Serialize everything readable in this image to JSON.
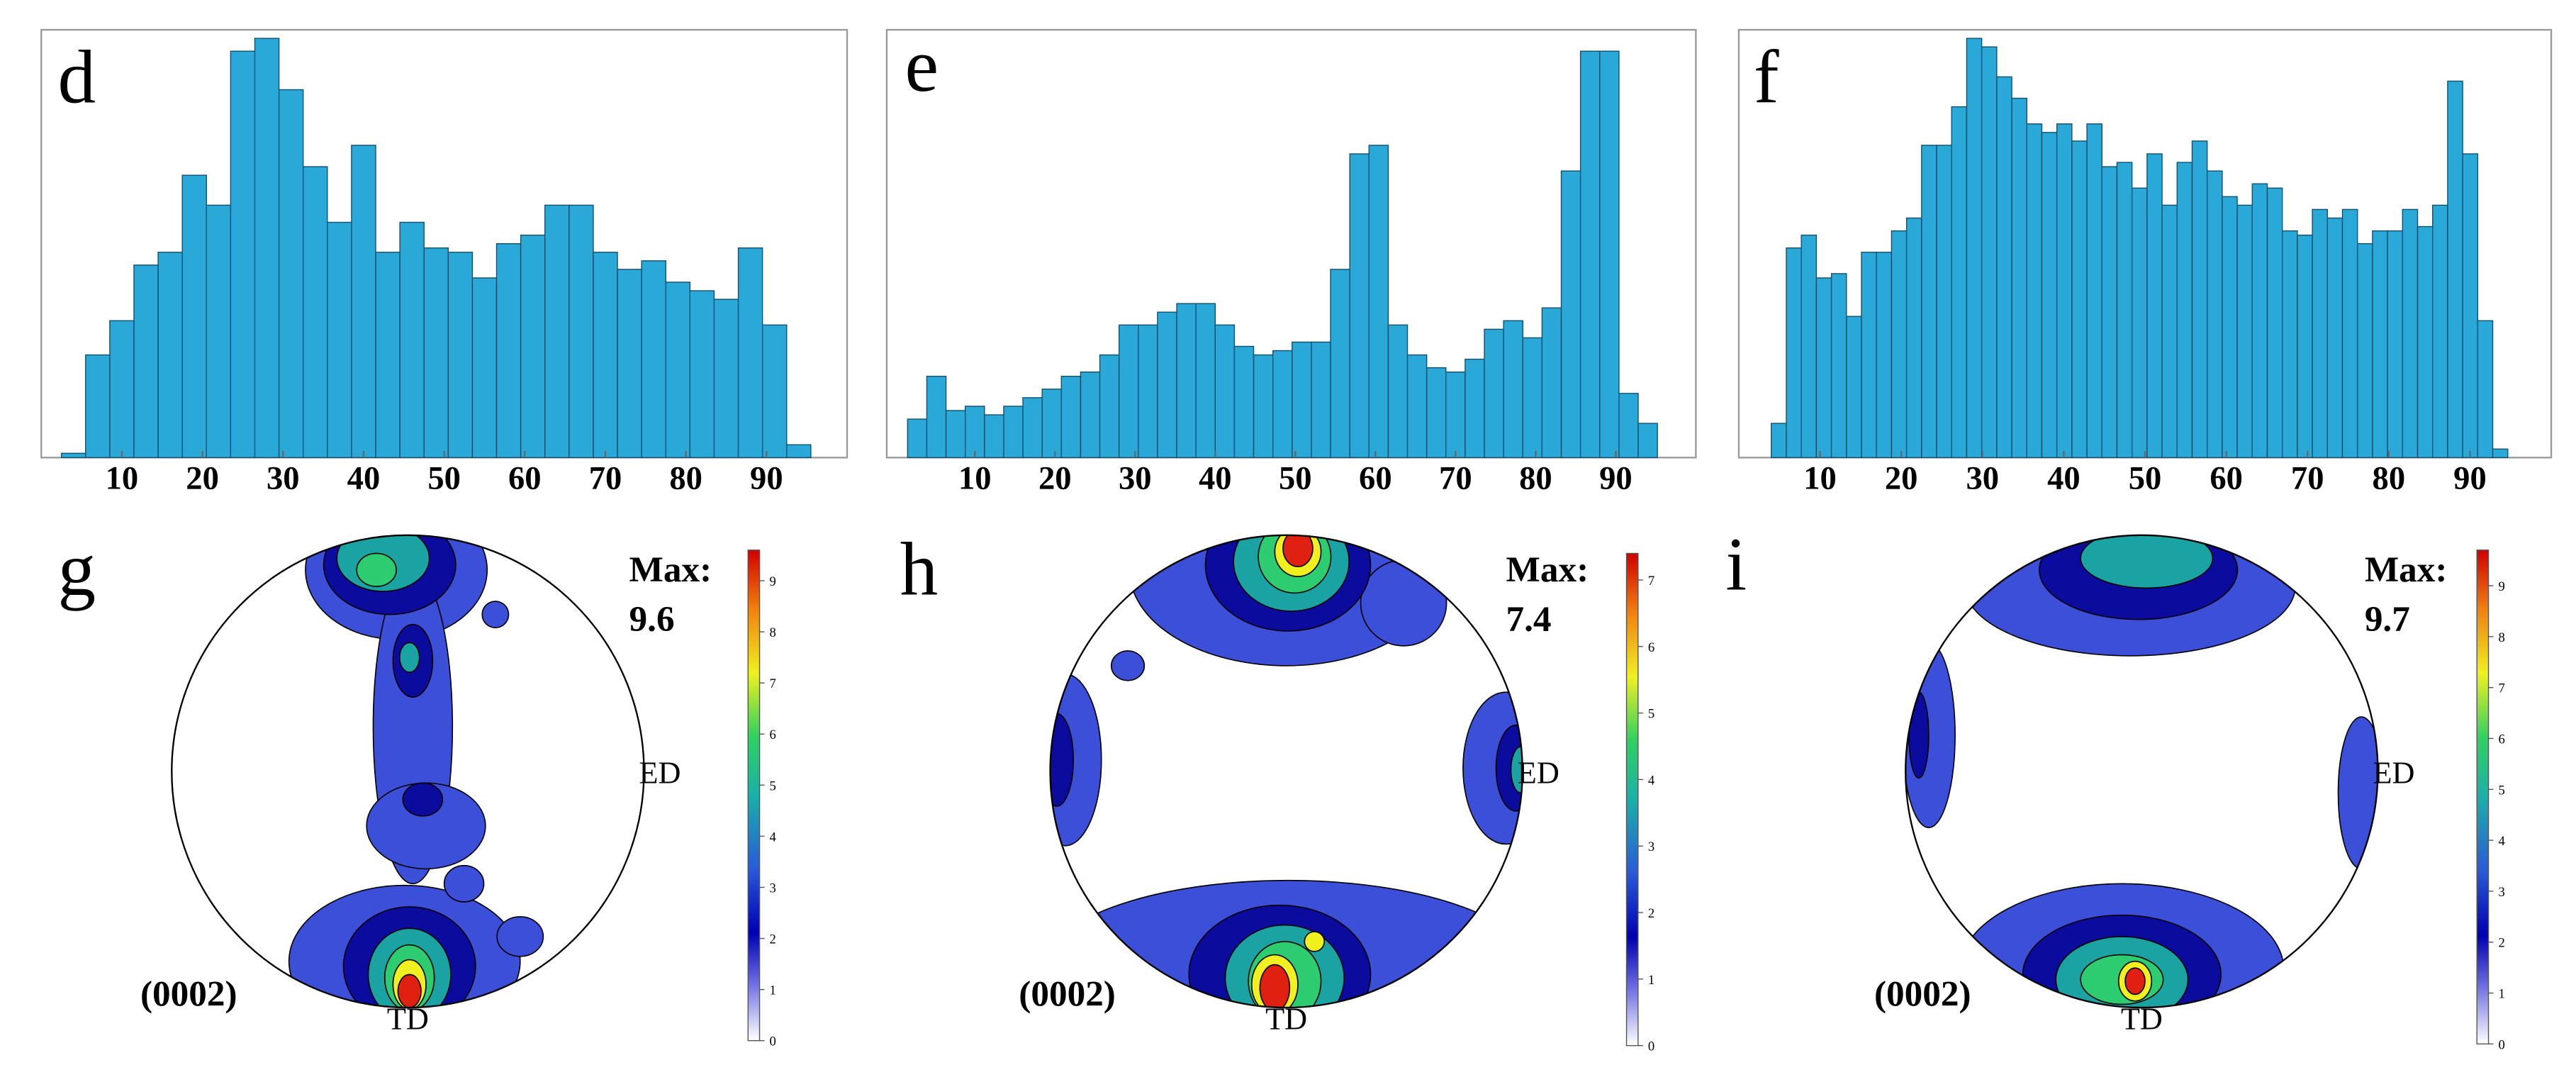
{
  "chart_data": [
    {
      "type": "histogram",
      "panel": "d",
      "color": "#2aa8d8",
      "xlim": [
        0,
        100
      ],
      "ylim": [
        0,
        100
      ],
      "xticks": [
        10,
        20,
        30,
        40,
        50,
        60,
        70,
        80,
        90
      ],
      "bins": [
        2.5,
        5.5,
        8.5,
        11.5,
        14.5,
        17.5,
        20.5,
        23.5,
        26.5,
        29.5,
        32.5,
        35.5,
        38.5,
        41.5,
        44.5,
        47.5,
        50.5,
        53.5,
        56.5,
        59.5,
        62.5,
        65.5,
        68.5,
        71.5,
        74.5,
        77.5,
        80.5,
        83.5,
        86.5,
        89.5,
        92.5,
        95.5
      ],
      "values": [
        1,
        24,
        32,
        45,
        48,
        66,
        59,
        95,
        98,
        86,
        68,
        55,
        73,
        48,
        55,
        49,
        48,
        42,
        50,
        52,
        59,
        59,
        48,
        44,
        46,
        41,
        39,
        37,
        49,
        31,
        3
      ]
    },
    {
      "type": "histogram",
      "panel": "e",
      "color": "#2aa8d8",
      "xlim": [
        -1,
        100
      ],
      "ylim": [
        0,
        100
      ],
      "xticks": [
        10,
        20,
        30,
        40,
        50,
        60,
        70,
        80,
        90
      ],
      "bins": [
        1.6,
        4,
        6.4,
        8.8,
        11.2,
        13.6,
        16,
        18.4,
        20.8,
        23.2,
        25.6,
        28,
        30.4,
        32.8,
        35.2,
        37.6,
        40,
        42.4,
        44.8,
        47.2,
        49.6,
        52,
        54.4,
        56.8,
        59.2,
        61.6,
        64,
        66.4,
        68.8,
        71.2,
        73.6,
        76,
        78.4,
        80.8,
        83.2,
        85.6,
        88,
        90.4,
        92.8,
        95.2
      ],
      "values": [
        9,
        19,
        11,
        12,
        10,
        12,
        14,
        16,
        19,
        20,
        24,
        31,
        31,
        34,
        36,
        36,
        31,
        26,
        24,
        25,
        27,
        27,
        44,
        71,
        73,
        31,
        24,
        21,
        20,
        23,
        30,
        32,
        28,
        35,
        67,
        95,
        95,
        15,
        8
      ]
    },
    {
      "type": "histogram",
      "panel": "f",
      "color": "#2aa8d8",
      "xlim": [
        0,
        100
      ],
      "ylim": [
        0,
        100
      ],
      "xticks": [
        10,
        20,
        30,
        40,
        50,
        60,
        70,
        80,
        90
      ],
      "bins": [
        4,
        5.85,
        7.7,
        9.55,
        11.4,
        13.25,
        15.1,
        16.95,
        18.8,
        20.65,
        22.5,
        24.35,
        26.2,
        28.05,
        29.9,
        31.75,
        33.6,
        35.45,
        37.3,
        39.15,
        41,
        42.85,
        44.7,
        46.55,
        48.4,
        50.25,
        52.1,
        53.95,
        55.8,
        57.65,
        59.5,
        61.35,
        63.2,
        65.05,
        66.9,
        68.75,
        70.6,
        72.45,
        74.3,
        76.15,
        78,
        79.85,
        81.7,
        83.55,
        85.4,
        87.25,
        89.1,
        90.95,
        92.8,
        94.65
      ],
      "values": [
        8,
        49,
        52,
        42,
        43,
        33,
        48,
        48,
        53,
        56,
        73,
        73,
        82,
        98,
        96,
        89,
        84,
        78,
        76,
        78,
        74,
        78,
        68,
        69,
        63,
        71,
        59,
        69,
        74,
        67,
        61,
        59,
        64,
        63,
        53,
        52,
        58,
        56,
        58,
        50,
        53,
        53,
        58,
        54,
        59,
        88,
        71,
        32,
        2
      ]
    },
    {
      "type": "pole_figure",
      "panel": "g",
      "max_label": "Max:",
      "max": 9.6,
      "x_label": "ED",
      "y_label": "TD",
      "plane": "(0002)",
      "clim": [
        0,
        9.6
      ],
      "cticks": [
        0,
        1,
        2,
        3,
        4,
        5,
        6,
        7,
        8,
        9
      ]
    },
    {
      "type": "pole_figure",
      "panel": "h",
      "max_label": "Max:",
      "max": 7.4,
      "x_label": "ED",
      "y_label": "TD",
      "plane": "(0002)",
      "clim": [
        0,
        7.4
      ],
      "cticks": [
        0,
        1,
        2,
        3,
        4,
        5,
        6,
        7
      ]
    },
    {
      "type": "pole_figure",
      "panel": "i",
      "max_label": "Max:",
      "max": 9.7,
      "x_label": "ED",
      "y_label": "TD",
      "plane": "(0002)",
      "clim": [
        0,
        9.7
      ],
      "cticks": [
        0,
        1,
        2,
        3,
        4,
        5,
        6,
        7,
        8,
        9
      ]
    }
  ]
}
